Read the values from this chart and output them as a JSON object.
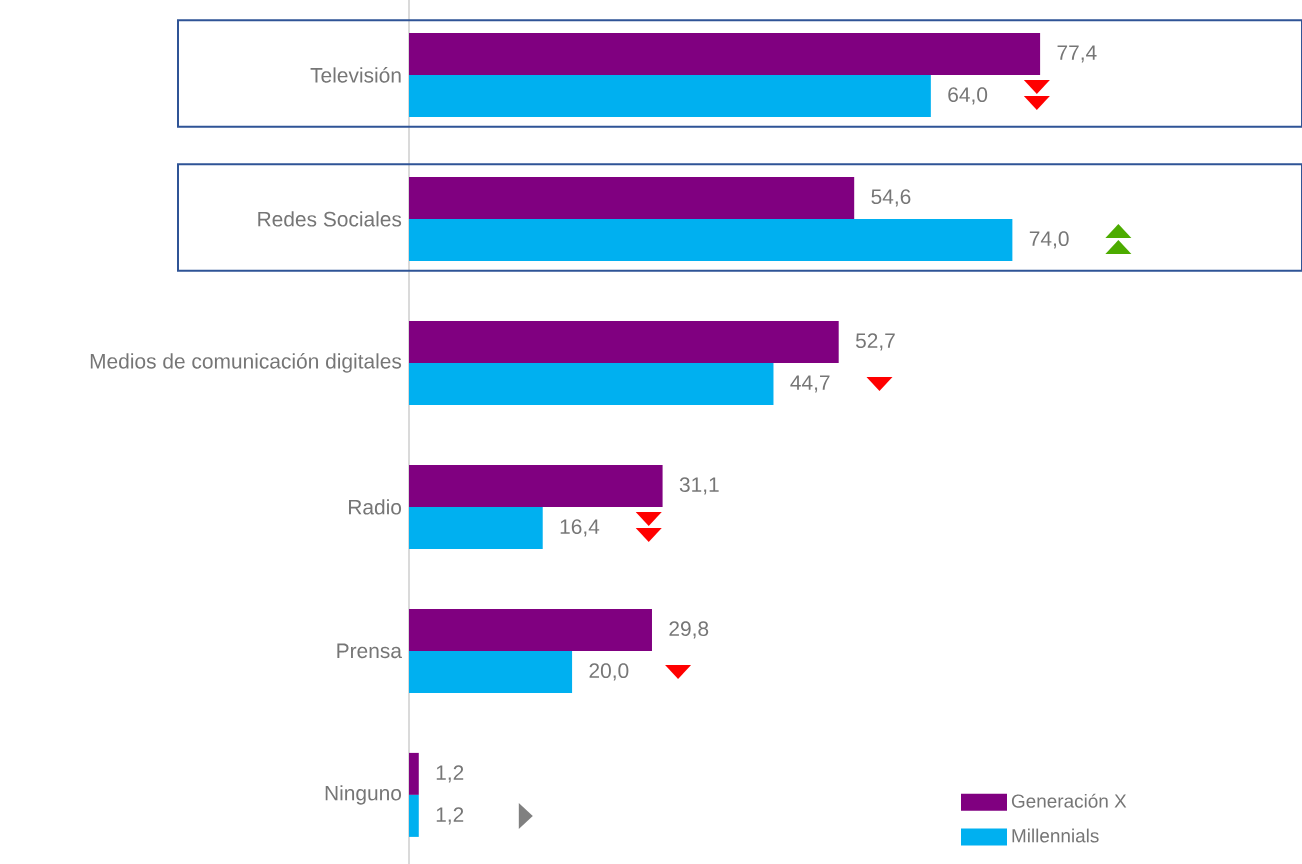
{
  "chart_data": {
    "type": "bar",
    "orientation": "horizontal",
    "categories": [
      "Televisión",
      "Redes Sociales",
      "Medios de comunicación digitales",
      "Radio",
      "Prensa",
      "Ninguno"
    ],
    "series": [
      {
        "name": "Generación X",
        "color": "#800080",
        "values": [
          77.4,
          54.6,
          52.7,
          31.1,
          29.8,
          1.2
        ],
        "value_labels": [
          "77,4",
          "54,6",
          "52,7",
          "31,1",
          "29,8",
          "1,2"
        ]
      },
      {
        "name": "Millennials",
        "color": "#00b0f0",
        "values": [
          64.0,
          74.0,
          44.7,
          16.4,
          20.0,
          1.2
        ],
        "value_labels": [
          "64,0",
          "74,0",
          "44,7",
          "16,4",
          "20,0",
          "1,2"
        ]
      }
    ],
    "legend": "bottom right",
    "tick_labels": "y"
  }
}
